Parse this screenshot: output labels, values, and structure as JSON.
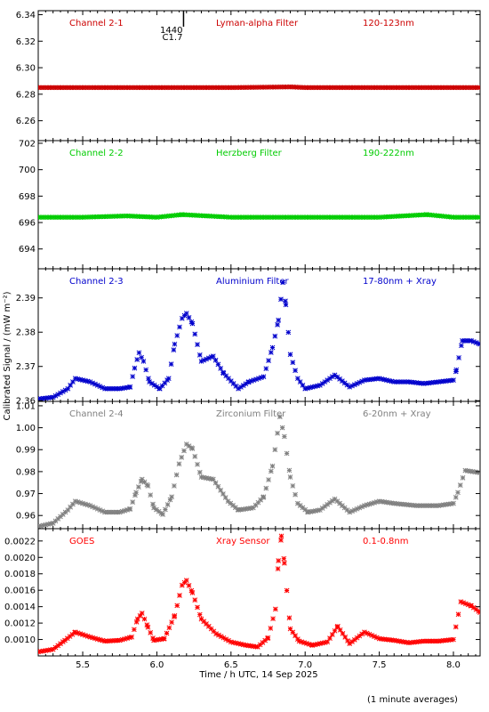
{
  "chart_data": {
    "type": "scatter",
    "xlabel": "Time / h UTC, 14 Sep 2025",
    "ylabel": "Calibrated Signal / (mW m⁻²)",
    "footnote": "(1 minute averages)",
    "xlim": [
      5.2,
      8.18
    ],
    "xticks": [
      "5.5",
      "6.0",
      "6.5",
      "7.0",
      "7.5",
      "8.0"
    ],
    "panels": [
      {
        "channel": "Channel 2-1",
        "filter": "Lyman-alpha Filter",
        "band": "120-123nm",
        "color": "#cc0000",
        "ylim": [
          6.245,
          6.343
        ],
        "yticks": [
          "6.26",
          "6.28",
          "6.30",
          "6.32",
          "6.34"
        ],
        "flare_label": "C1.7",
        "flare_time_label": "1440",
        "flare_x": 6.18,
        "points": [
          [
            5.2,
            6.285
          ],
          [
            5.5,
            6.285
          ],
          [
            6.0,
            6.285
          ],
          [
            6.5,
            6.285
          ],
          [
            6.9,
            6.2855
          ],
          [
            7.0,
            6.285
          ],
          [
            7.5,
            6.285
          ],
          [
            8.0,
            6.285
          ],
          [
            8.18,
            6.285
          ]
        ]
      },
      {
        "channel": "Channel 2-2",
        "filter": "Herzberg Filter",
        "band": "190-222nm",
        "color": "#00cc00",
        "ylim": [
          692.5,
          702.2
        ],
        "yticks": [
          "694",
          "696",
          "698",
          "700",
          "702"
        ],
        "points": [
          [
            5.2,
            696.4
          ],
          [
            5.5,
            696.4
          ],
          [
            5.8,
            696.5
          ],
          [
            6.0,
            696.4
          ],
          [
            6.17,
            696.6
          ],
          [
            6.5,
            696.4
          ],
          [
            7.0,
            696.4
          ],
          [
            7.5,
            696.4
          ],
          [
            7.82,
            696.6
          ],
          [
            8.0,
            696.4
          ],
          [
            8.18,
            696.4
          ]
        ]
      },
      {
        "channel": "Channel 2-3",
        "filter": "Aluminium Filter",
        "band": "17-80nm + Xray",
        "color": "#0000cc",
        "ylim": [
          2.3598,
          2.3985
        ],
        "yticks": [
          "2.36",
          "2.37",
          "2.38",
          "2.39"
        ],
        "points": [
          [
            5.2,
            2.3605
          ],
          [
            5.3,
            2.361
          ],
          [
            5.4,
            2.3635
          ],
          [
            5.45,
            2.3665
          ],
          [
            5.55,
            2.3655
          ],
          [
            5.65,
            2.3635
          ],
          [
            5.75,
            2.3635
          ],
          [
            5.82,
            2.364
          ],
          [
            5.85,
            2.3695
          ],
          [
            5.88,
            2.374
          ],
          [
            5.91,
            2.3715
          ],
          [
            5.95,
            2.3655
          ],
          [
            6.02,
            2.3635
          ],
          [
            6.08,
            2.3665
          ],
          [
            6.12,
            2.3765
          ],
          [
            6.17,
            2.384
          ],
          [
            6.2,
            2.3855
          ],
          [
            6.24,
            2.3825
          ],
          [
            6.3,
            2.3715
          ],
          [
            6.38,
            2.373
          ],
          [
            6.45,
            2.368
          ],
          [
            6.55,
            2.3635
          ],
          [
            6.62,
            2.3655
          ],
          [
            6.72,
            2.367
          ],
          [
            6.78,
            2.3755
          ],
          [
            6.82,
            2.3835
          ],
          [
            6.85,
            2.3945
          ],
          [
            6.87,
            2.388
          ],
          [
            6.9,
            2.3735
          ],
          [
            6.95,
            2.3665
          ],
          [
            7.0,
            2.3635
          ],
          [
            7.1,
            2.3645
          ],
          [
            7.2,
            2.3675
          ],
          [
            7.3,
            2.364
          ],
          [
            7.4,
            2.366
          ],
          [
            7.5,
            2.3665
          ],
          [
            7.6,
            2.3655
          ],
          [
            7.7,
            2.3655
          ],
          [
            7.8,
            2.365
          ],
          [
            7.9,
            2.3655
          ],
          [
            8.0,
            2.366
          ],
          [
            8.02,
            2.369
          ],
          [
            8.06,
            2.3775
          ],
          [
            8.12,
            2.3775
          ],
          [
            8.18,
            2.3765
          ]
        ]
      },
      {
        "channel": "Channel 2-4",
        "filter": "Zirconium Filter",
        "band": "6-20nm + Xray",
        "color": "#808080",
        "ylim": [
          0.954,
          1.012
        ],
        "yticks": [
          "0.96",
          "0.97",
          "0.98",
          "0.99",
          "1.00",
          "1.01"
        ],
        "points": [
          [
            5.2,
            0.955
          ],
          [
            5.3,
            0.9565
          ],
          [
            5.4,
            0.9625
          ],
          [
            5.45,
            0.9665
          ],
          [
            5.55,
            0.9645
          ],
          [
            5.65,
            0.9615
          ],
          [
            5.75,
            0.9615
          ],
          [
            5.82,
            0.963
          ],
          [
            5.86,
            0.9705
          ],
          [
            5.9,
            0.9765
          ],
          [
            5.94,
            0.9735
          ],
          [
            5.98,
            0.9635
          ],
          [
            6.04,
            0.9605
          ],
          [
            6.1,
            0.9685
          ],
          [
            6.15,
            0.9835
          ],
          [
            6.2,
            0.9925
          ],
          [
            6.24,
            0.9905
          ],
          [
            6.3,
            0.9775
          ],
          [
            6.38,
            0.9765
          ],
          [
            6.48,
            0.9665
          ],
          [
            6.55,
            0.9625
          ],
          [
            6.65,
            0.9635
          ],
          [
            6.72,
            0.9685
          ],
          [
            6.78,
            0.9825
          ],
          [
            6.83,
            1.005
          ],
          [
            6.86,
            0.996
          ],
          [
            6.9,
            0.9775
          ],
          [
            6.95,
            0.9655
          ],
          [
            7.02,
            0.9615
          ],
          [
            7.1,
            0.9625
          ],
          [
            7.2,
            0.9675
          ],
          [
            7.3,
            0.9615
          ],
          [
            7.4,
            0.9645
          ],
          [
            7.5,
            0.9665
          ],
          [
            7.6,
            0.9655
          ],
          [
            7.75,
            0.9645
          ],
          [
            7.9,
            0.9645
          ],
          [
            8.0,
            0.9655
          ],
          [
            8.03,
            0.9705
          ],
          [
            8.08,
            0.9805
          ],
          [
            8.18,
            0.9795
          ]
        ]
      },
      {
        "channel": "GOES",
        "filter": "Xray Sensor",
        "band": "0.1-0.8nm",
        "color": "#ff0000",
        "ylim": [
          0.0008,
          0.00235
        ],
        "yticks": [
          "0.0010",
          "0.0012",
          "0.0014",
          "0.0016",
          "0.0018",
          "0.0020",
          "0.0022"
        ],
        "points": [
          [
            5.2,
            0.00085
          ],
          [
            5.3,
            0.00088
          ],
          [
            5.38,
            0.00099
          ],
          [
            5.45,
            0.00109
          ],
          [
            5.55,
            0.00103
          ],
          [
            5.65,
            0.00098
          ],
          [
            5.75,
            0.00099
          ],
          [
            5.83,
            0.00103
          ],
          [
            5.87,
            0.00125
          ],
          [
            5.9,
            0.00132
          ],
          [
            5.94,
            0.00115
          ],
          [
            5.98,
            0.00099
          ],
          [
            6.05,
            0.00101
          ],
          [
            6.12,
            0.00129
          ],
          [
            6.17,
            0.00166
          ],
          [
            6.2,
            0.00172
          ],
          [
            6.24,
            0.00157
          ],
          [
            6.3,
            0.00125
          ],
          [
            6.4,
            0.00107
          ],
          [
            6.5,
            0.00097
          ],
          [
            6.6,
            0.00093
          ],
          [
            6.68,
            0.00091
          ],
          [
            6.75,
            0.00102
          ],
          [
            6.8,
            0.00137
          ],
          [
            6.82,
            0.00196
          ],
          [
            6.84,
            0.00226
          ],
          [
            6.86,
            0.00193
          ],
          [
            6.9,
            0.00113
          ],
          [
            6.96,
            0.00098
          ],
          [
            7.05,
            0.00093
          ],
          [
            7.15,
            0.00097
          ],
          [
            7.22,
            0.00116
          ],
          [
            7.3,
            0.00095
          ],
          [
            7.4,
            0.00109
          ],
          [
            7.5,
            0.00101
          ],
          [
            7.6,
            0.00099
          ],
          [
            7.7,
            0.00096
          ],
          [
            7.8,
            0.00098
          ],
          [
            7.9,
            0.00098
          ],
          [
            8.0,
            0.001
          ],
          [
            8.05,
            0.00146
          ],
          [
            8.12,
            0.00141
          ],
          [
            8.18,
            0.00133
          ]
        ]
      }
    ]
  }
}
